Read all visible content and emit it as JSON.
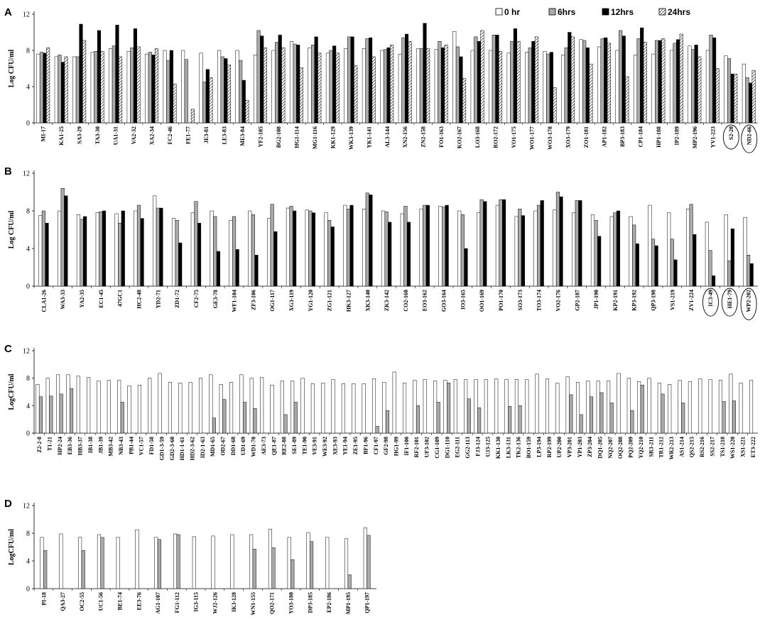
{
  "legend": [
    {
      "name": "0 hr",
      "fill": "white"
    },
    {
      "name": "6hrs",
      "fill": "gray"
    },
    {
      "name": "12hrs",
      "fill": "black"
    },
    {
      "name": "24hrs",
      "fill": "hatch"
    }
  ],
  "colors": {
    "gray": "#aaaaaa",
    "black": "#000000",
    "white": "#ffffff"
  },
  "chart_data": [
    {
      "type": "bar",
      "panel": "A",
      "ylabel": "Log CFU/ml",
      "ylim": [
        0,
        12
      ],
      "yticks": [
        0,
        4,
        8,
        12
      ],
      "series_names": [
        "0 hr",
        "6hrs",
        "12hrs",
        "24hrs"
      ],
      "circled": [
        "S2-20",
        "ND2-66"
      ],
      "categories": [
        "MI-17",
        "KA1-25",
        "SA3-29",
        "TA3-30",
        "UA1-31",
        "VA2-32",
        "XA2-34",
        "FC2-46",
        "FE1-77",
        "JE3-81",
        "LE3-83",
        "ME3-84",
        "YF2-105",
        "BG2-108",
        "HG1-114",
        "MG1-116",
        "KK1-129",
        "WK3-139",
        "YK1-141",
        "AL3-144",
        "XN2-156",
        "ZN2-158",
        "FO1-163",
        "KO2-167",
        "LO3-168",
        "RO2-172",
        "VO1-175",
        "WO1-177",
        "WO3-178",
        "XO3-179",
        "ZO1-181",
        "AP1-182",
        "BP3-183",
        "CP1-184",
        "HP1-188",
        "IP2-189",
        "MP2-196",
        "YV1-223",
        "S2-20",
        "ND2-66"
      ],
      "values": [
        [
          7.6,
          7.8,
          7.7,
          8.3
        ],
        [
          7.3,
          7.5,
          6.7,
          7.3
        ],
        [
          7.3,
          7.3,
          10.9,
          9.1
        ],
        [
          7.8,
          7.9,
          10.2,
          7.9
        ],
        [
          8.2,
          8.5,
          10.8,
          7.3
        ],
        [
          7.9,
          8.3,
          10.4,
          8.4
        ],
        [
          7.6,
          7.8,
          7.5,
          8.2
        ],
        [
          8.0,
          6.9,
          8.0,
          4.3
        ],
        [
          8.0,
          7.0,
          null,
          1.5
        ],
        [
          7.7,
          4.5,
          5.9,
          5.0
        ],
        [
          8.0,
          7.3,
          7.1,
          6.4
        ],
        [
          8.0,
          6.9,
          4.7,
          2.5
        ],
        [
          7.5,
          10.2,
          9.6,
          8.3
        ],
        [
          8.0,
          8.9,
          9.7,
          8.3
        ],
        [
          9.0,
          8.7,
          8.6,
          6.1
        ],
        [
          8.3,
          8.6,
          9.5,
          7.7
        ],
        [
          7.7,
          8.0,
          8.5,
          7.7
        ],
        [
          8.2,
          9.5,
          9.5,
          6.3
        ],
        [
          8.2,
          9.3,
          9.4,
          7.3
        ],
        [
          8.0,
          8.1,
          8.3,
          8.6
        ],
        [
          7.6,
          9.4,
          9.8,
          9.0
        ],
        [
          8.2,
          8.2,
          11.0,
          8.2
        ],
        [
          8.1,
          9.0,
          8.3,
          8.6
        ],
        [
          10.1,
          8.4,
          7.3,
          4.9
        ],
        [
          8.0,
          9.5,
          9.0,
          10.2
        ],
        [
          8.0,
          9.7,
          9.7,
          7.9
        ],
        [
          7.7,
          9.0,
          10.4,
          9.0
        ],
        [
          7.8,
          8.3,
          9.0,
          9.5
        ],
        [
          7.9,
          7.6,
          7.8,
          3.9
        ],
        [
          7.5,
          8.3,
          10.0,
          9.5
        ],
        [
          9.2,
          9.1,
          8.3,
          6.5
        ],
        [
          8.4,
          9.3,
          9.4,
          8.8
        ],
        [
          8.0,
          10.2,
          9.6,
          5.1
        ],
        [
          7.5,
          9.3,
          10.5,
          8.9
        ],
        [
          7.6,
          9.1,
          9.1,
          9.3
        ],
        [
          8.0,
          8.8,
          9.2,
          9.8
        ],
        [
          8.5,
          8.1,
          8.6,
          7.3
        ],
        [
          8.0,
          9.7,
          9.4,
          6.0
        ],
        [
          7.4,
          7.1,
          5.4,
          5.4
        ],
        [
          6.5,
          5.0,
          4.4,
          5.8
        ]
      ]
    },
    {
      "type": "bar",
      "panel": "B",
      "ylabel": "Log CFU/ml",
      "ylim": [
        0,
        12
      ],
      "yticks": [
        0,
        4,
        8,
        12
      ],
      "series_names": [
        "0 hr",
        "6hrs",
        "12hrs"
      ],
      "circled": [
        "IC3-49",
        "HE1-79",
        "WP2-202"
      ],
      "categories": [
        "CLA1-26",
        "WA3-33",
        "YA2-35",
        "EC1-45",
        "47GC1",
        "HC2-48",
        "YD2-71",
        "ZD1-72",
        "CF2-75",
        "GE3-78",
        "WF1-104",
        "ZF3-106",
        "OG1-117",
        "XG3-119",
        "YG1-120",
        "ZG1-121",
        "HK3-127",
        "XK3-140",
        "ZK3-142",
        "CO2-160",
        "EO3-162",
        "GO3-164",
        "IO3-165",
        "OO1-169",
        "PO1-170",
        "SO3-173",
        "TO3-174",
        "VO2-176",
        "GP2-187",
        "JP1-190",
        "KP2-191",
        "KP3-192",
        "QP3-198",
        "VS1-219",
        "ZV1-224",
        "IC3-49",
        "HE1-79",
        "WP2-202"
      ],
      "values": [
        [
          7.5,
          8.0,
          6.7
        ],
        [
          8.0,
          10.4,
          9.6
        ],
        [
          7.6,
          7.1,
          7.4
        ],
        [
          7.8,
          7.9,
          8.0
        ],
        [
          7.7,
          6.7,
          8.0
        ],
        [
          8.0,
          8.6,
          7.2
        ],
        [
          9.6,
          8.3,
          8.3
        ],
        [
          7.2,
          7.0,
          4.6
        ],
        [
          7.8,
          9.0,
          6.7
        ],
        [
          8.0,
          7.4,
          3.7
        ],
        [
          7.0,
          7.4,
          3.9
        ],
        [
          8.0,
          7.6,
          3.3
        ],
        [
          7.2,
          8.7,
          5.8
        ],
        [
          8.3,
          8.5,
          8.0
        ],
        [
          8.1,
          8.0,
          7.8
        ],
        [
          7.8,
          7.0,
          6.3
        ],
        [
          8.6,
          8.2,
          8.6
        ],
        [
          8.2,
          9.9,
          9.7
        ],
        [
          8.0,
          7.9,
          6.8
        ],
        [
          7.7,
          8.5,
          6.8
        ],
        [
          8.2,
          8.6,
          8.6
        ],
        [
          8.5,
          8.4,
          8.6
        ],
        [
          8.0,
          7.6,
          4.0
        ],
        [
          7.8,
          9.2,
          9.0
        ],
        [
          8.6,
          9.2,
          9.2
        ],
        [
          7.4,
          8.2,
          7.5
        ],
        [
          8.0,
          8.6,
          9.1
        ],
        [
          8.1,
          10.0,
          9.5
        ],
        [
          7.8,
          9.1,
          9.1
        ],
        [
          7.6,
          7.0,
          5.3
        ],
        [
          7.4,
          7.8,
          8.0
        ],
        [
          7.4,
          6.5,
          4.5
        ],
        [
          8.6,
          5.0,
          4.3
        ],
        [
          7.8,
          5.0,
          2.8
        ],
        [
          8.2,
          8.7,
          5.5
        ],
        [
          6.8,
          3.8,
          1.1
        ],
        [
          7.6,
          2.7,
          6.1
        ],
        [
          7.3,
          3.3,
          2.4
        ]
      ]
    },
    {
      "type": "bar",
      "panel": "C",
      "ylabel": "LogCFU/ml",
      "ylim": [
        0,
        12
      ],
      "yticks": [
        0,
        4,
        8,
        12
      ],
      "series_names": [
        "0 hr",
        "6hrs"
      ],
      "categories": [
        "Z2-2-8",
        "T1-21",
        "HP2-24",
        "EB3-36",
        "HB3-37",
        "IB1-38",
        "JB1-39",
        "MB3-42",
        "NB3-43",
        "PB1-44",
        "VC1-57",
        "FD1-58",
        "GD1-3-59",
        "GD2-3-60",
        "HD1-1-61",
        "HD2-3-62",
        "ID2-1-63",
        "MD1-65",
        "OD2-67",
        "DD1-68",
        "UD1-69",
        "WD1-70",
        "AE3-73",
        "QE1-87",
        "RE2-88",
        "SE1-89",
        "TE1-90",
        "VE3-91",
        "WE3-92",
        "XE3-93",
        "YE1-94",
        "ZE1-95",
        "BF1-96",
        "CF1-97",
        "GF2-98",
        "HG1-99",
        "IF1-100",
        "RF2-101",
        "UF3-102",
        "CG1-109",
        "DG1-110",
        "EG2-111",
        "GG2-113",
        "FJ3-124",
        "UJ3-125",
        "KK1-130",
        "LK3-131",
        "TK2-136",
        "BO1-159",
        "LP3-194",
        "RP2-199",
        "UP2-200",
        "VP3-201",
        "YP1-203",
        "ZP3-204",
        "DQ1-205",
        "NQ2-207",
        "OQ2-208",
        "PQ2-209",
        "YQ2-210",
        "SR3-211",
        "TR1-212",
        "WR2-213",
        "AS1-214",
        "QS2-215",
        "RS2-216",
        "SS2-217",
        "TS1-218",
        "WS1-220",
        "XS1-221",
        "ET3-222"
      ],
      "values": [
        [
          7.1,
          5.3
        ],
        [
          8.0,
          5.4
        ],
        [
          8.5,
          5.7
        ],
        [
          8.5,
          6.5
        ],
        [
          8.3,
          null
        ],
        [
          8.1,
          null
        ],
        [
          7.6,
          null
        ],
        [
          7.7,
          null
        ],
        [
          7.7,
          4.5
        ],
        [
          6.9,
          null
        ],
        [
          7.0,
          null
        ],
        [
          8.0,
          null
        ],
        [
          8.7,
          null
        ],
        [
          7.4,
          null
        ],
        [
          7.3,
          null
        ],
        [
          7.4,
          null
        ],
        [
          8.0,
          null
        ],
        [
          8.5,
          2.2
        ],
        [
          7.1,
          4.9
        ],
        [
          7.4,
          null
        ],
        [
          8.5,
          4.5
        ],
        [
          8.0,
          3.6
        ],
        [
          8.1,
          null
        ],
        [
          7.0,
          null
        ],
        [
          7.6,
          2.7
        ],
        [
          7.6,
          4.5
        ],
        [
          8.0,
          null
        ],
        [
          7.2,
          null
        ],
        [
          7.3,
          null
        ],
        [
          7.8,
          null
        ],
        [
          7.2,
          null
        ],
        [
          7.2,
          null
        ],
        [
          7.2,
          null
        ],
        [
          7.9,
          1.0
        ],
        [
          7.4,
          3.3
        ],
        [
          8.9,
          null
        ],
        [
          7.3,
          null
        ],
        [
          7.7,
          4.0
        ],
        [
          7.8,
          null
        ],
        [
          7.6,
          4.5
        ],
        [
          7.7,
          7.3
        ],
        [
          7.8,
          null
        ],
        [
          7.8,
          5.0
        ],
        [
          7.8,
          3.7
        ],
        [
          7.8,
          null
        ],
        [
          7.9,
          null
        ],
        [
          7.8,
          3.9
        ],
        [
          7.8,
          4.0
        ],
        [
          7.8,
          null
        ],
        [
          8.6,
          null
        ],
        [
          7.9,
          null
        ],
        [
          7.3,
          null
        ],
        [
          8.2,
          5.6
        ],
        [
          7.4,
          2.7
        ],
        [
          7.6,
          5.3
        ],
        [
          7.6,
          5.9
        ],
        [
          7.6,
          4.4
        ],
        [
          8.7,
          null
        ],
        [
          8.0,
          3.3
        ],
        [
          7.5,
          7.0
        ],
        [
          8.0,
          null
        ],
        [
          7.3,
          5.7
        ],
        [
          7.1,
          null
        ],
        [
          7.7,
          4.4
        ],
        [
          7.5,
          null
        ],
        [
          7.9,
          null
        ],
        [
          7.8,
          null
        ],
        [
          7.7,
          4.6
        ],
        [
          8.6,
          4.7
        ],
        [
          7.3,
          null
        ],
        [
          7.7,
          null
        ]
      ]
    },
    {
      "type": "bar",
      "panel": "D",
      "ylabel": "LogCFU/ml",
      "ylim": [
        0,
        12
      ],
      "yticks": [
        0,
        4,
        8,
        12
      ],
      "series_names": [
        "0 hr",
        "6hrs"
      ],
      "categories": [
        "PI-18",
        "QA3-27",
        "OC2-55",
        "UC1-56",
        "BE1-74",
        "EE3-76",
        "AG1-107",
        "FG1-112",
        "IG3-115",
        "WJ2-126",
        "IK3-128",
        "WN1-155",
        "QO2-171",
        "YO3-180",
        "DP3-185",
        "EP2-186",
        "MP1-195",
        "QP1-197"
      ],
      "values": [
        [
          7.4,
          5.5
        ],
        [
          7.9,
          null
        ],
        [
          7.4,
          5.5
        ],
        [
          7.8,
          7.4
        ],
        [
          7.4,
          null
        ],
        [
          8.5,
          null
        ],
        [
          7.4,
          7.1
        ],
        [
          7.9,
          7.8
        ],
        [
          7.5,
          null
        ],
        [
          7.6,
          null
        ],
        [
          7.8,
          null
        ],
        [
          7.8,
          5.7
        ],
        [
          8.6,
          5.9
        ],
        [
          7.4,
          4.2
        ],
        [
          8.1,
          6.8
        ],
        [
          7.4,
          null
        ],
        [
          7.2,
          2.0
        ],
        [
          8.8,
          7.7
        ]
      ]
    }
  ]
}
